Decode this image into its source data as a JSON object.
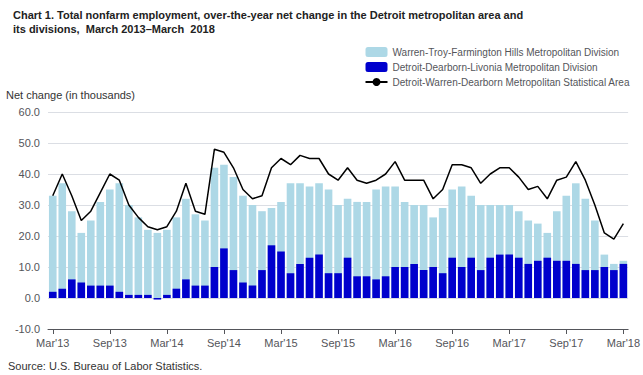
{
  "chart_data": {
    "type": "bar",
    "title": "Chart 1. Total nonfarm employment, over-the-year net change in the Detroit metropolitan area and",
    "subtitle": "its divisions,  March 2013–March  2018",
    "ylabel": "Net change (in thousands)",
    "annotations": [
      "Source: U.S. Bureau of Labor Statistics."
    ],
    "categories": [
      "Mar'13",
      null,
      null,
      null,
      null,
      null,
      "Sep'13",
      null,
      null,
      null,
      null,
      null,
      "Mar'14",
      null,
      null,
      null,
      null,
      null,
      "Sep'14",
      null,
      null,
      null,
      null,
      null,
      "Mar'15",
      null,
      null,
      null,
      null,
      null,
      "Sep'15",
      null,
      null,
      null,
      null,
      null,
      "Mar'16",
      null,
      null,
      null,
      null,
      null,
      "Sep'16",
      null,
      null,
      null,
      null,
      null,
      "Mar'17",
      null,
      null,
      null,
      null,
      null,
      "Sep'17",
      null,
      null,
      null,
      null,
      null,
      "Mar'18"
    ],
    "series": [
      {
        "name": "Warren-Troy-Farmington Hills Metropolitan Division",
        "type": "bar",
        "color": "#add8e6",
        "values": [
          33,
          37,
          28,
          21,
          25,
          31,
          35,
          37,
          30,
          26,
          22,
          21,
          22,
          26,
          32,
          27,
          25,
          42,
          43,
          39,
          33,
          30,
          28,
          29,
          31,
          37,
          37,
          36,
          37,
          35,
          30,
          32,
          31,
          31,
          35,
          36,
          36,
          31,
          30,
          30,
          26,
          29,
          35,
          36,
          33,
          30,
          30,
          30,
          30,
          28,
          25,
          24,
          21,
          28,
          33,
          37,
          32,
          25,
          14,
          11,
          12
        ]
      },
      {
        "name": "Detroit-Dearborn-Livonia Metropolitan Division",
        "type": "bar",
        "color": "#0000cd",
        "values": [
          2,
          3,
          6,
          5,
          4,
          4,
          4,
          2,
          1,
          1,
          1,
          -0.5,
          1,
          3,
          6,
          4,
          4,
          10,
          16,
          9,
          5,
          4,
          9,
          17,
          15,
          8,
          11,
          13,
          14,
          8,
          8,
          13,
          7,
          7,
          6,
          7,
          10,
          10,
          11,
          9,
          10,
          8,
          13,
          10,
          13,
          9,
          13,
          14,
          14,
          13,
          11,
          12,
          13,
          12,
          12,
          11,
          9,
          9,
          10,
          9,
          11
        ]
      },
      {
        "name": "Detroit-Warren-Dearborn Metropolitan Statistical Area",
        "type": "line",
        "color": "#000000",
        "values": [
          33,
          40,
          33,
          25,
          28,
          34,
          40,
          38,
          30,
          26,
          23,
          22,
          23,
          28,
          37,
          28,
          27,
          48,
          47,
          42,
          35,
          32,
          33,
          42,
          45,
          43,
          46,
          45,
          45,
          40,
          38,
          42,
          38,
          37,
          38,
          40,
          44,
          38,
          38,
          38,
          32,
          35,
          43,
          43,
          42,
          37,
          40,
          42,
          42,
          39,
          35,
          36,
          32,
          38,
          39,
          44,
          38,
          30,
          21,
          19,
          24
        ]
      }
    ],
    "ylim": [
      -10,
      60
    ],
    "yticks": [
      {
        "value": -10,
        "label": "-10.0"
      },
      {
        "value": 0,
        "label": "0.0"
      },
      {
        "value": 10,
        "label": "10.0"
      },
      {
        "value": 20,
        "label": "20.0"
      },
      {
        "value": 30,
        "label": "30.0"
      },
      {
        "value": 40,
        "label": "40.0"
      },
      {
        "value": 50,
        "label": "50.0"
      },
      {
        "value": 60,
        "label": "60.0"
      }
    ],
    "grid": true,
    "legend": "upper right"
  }
}
